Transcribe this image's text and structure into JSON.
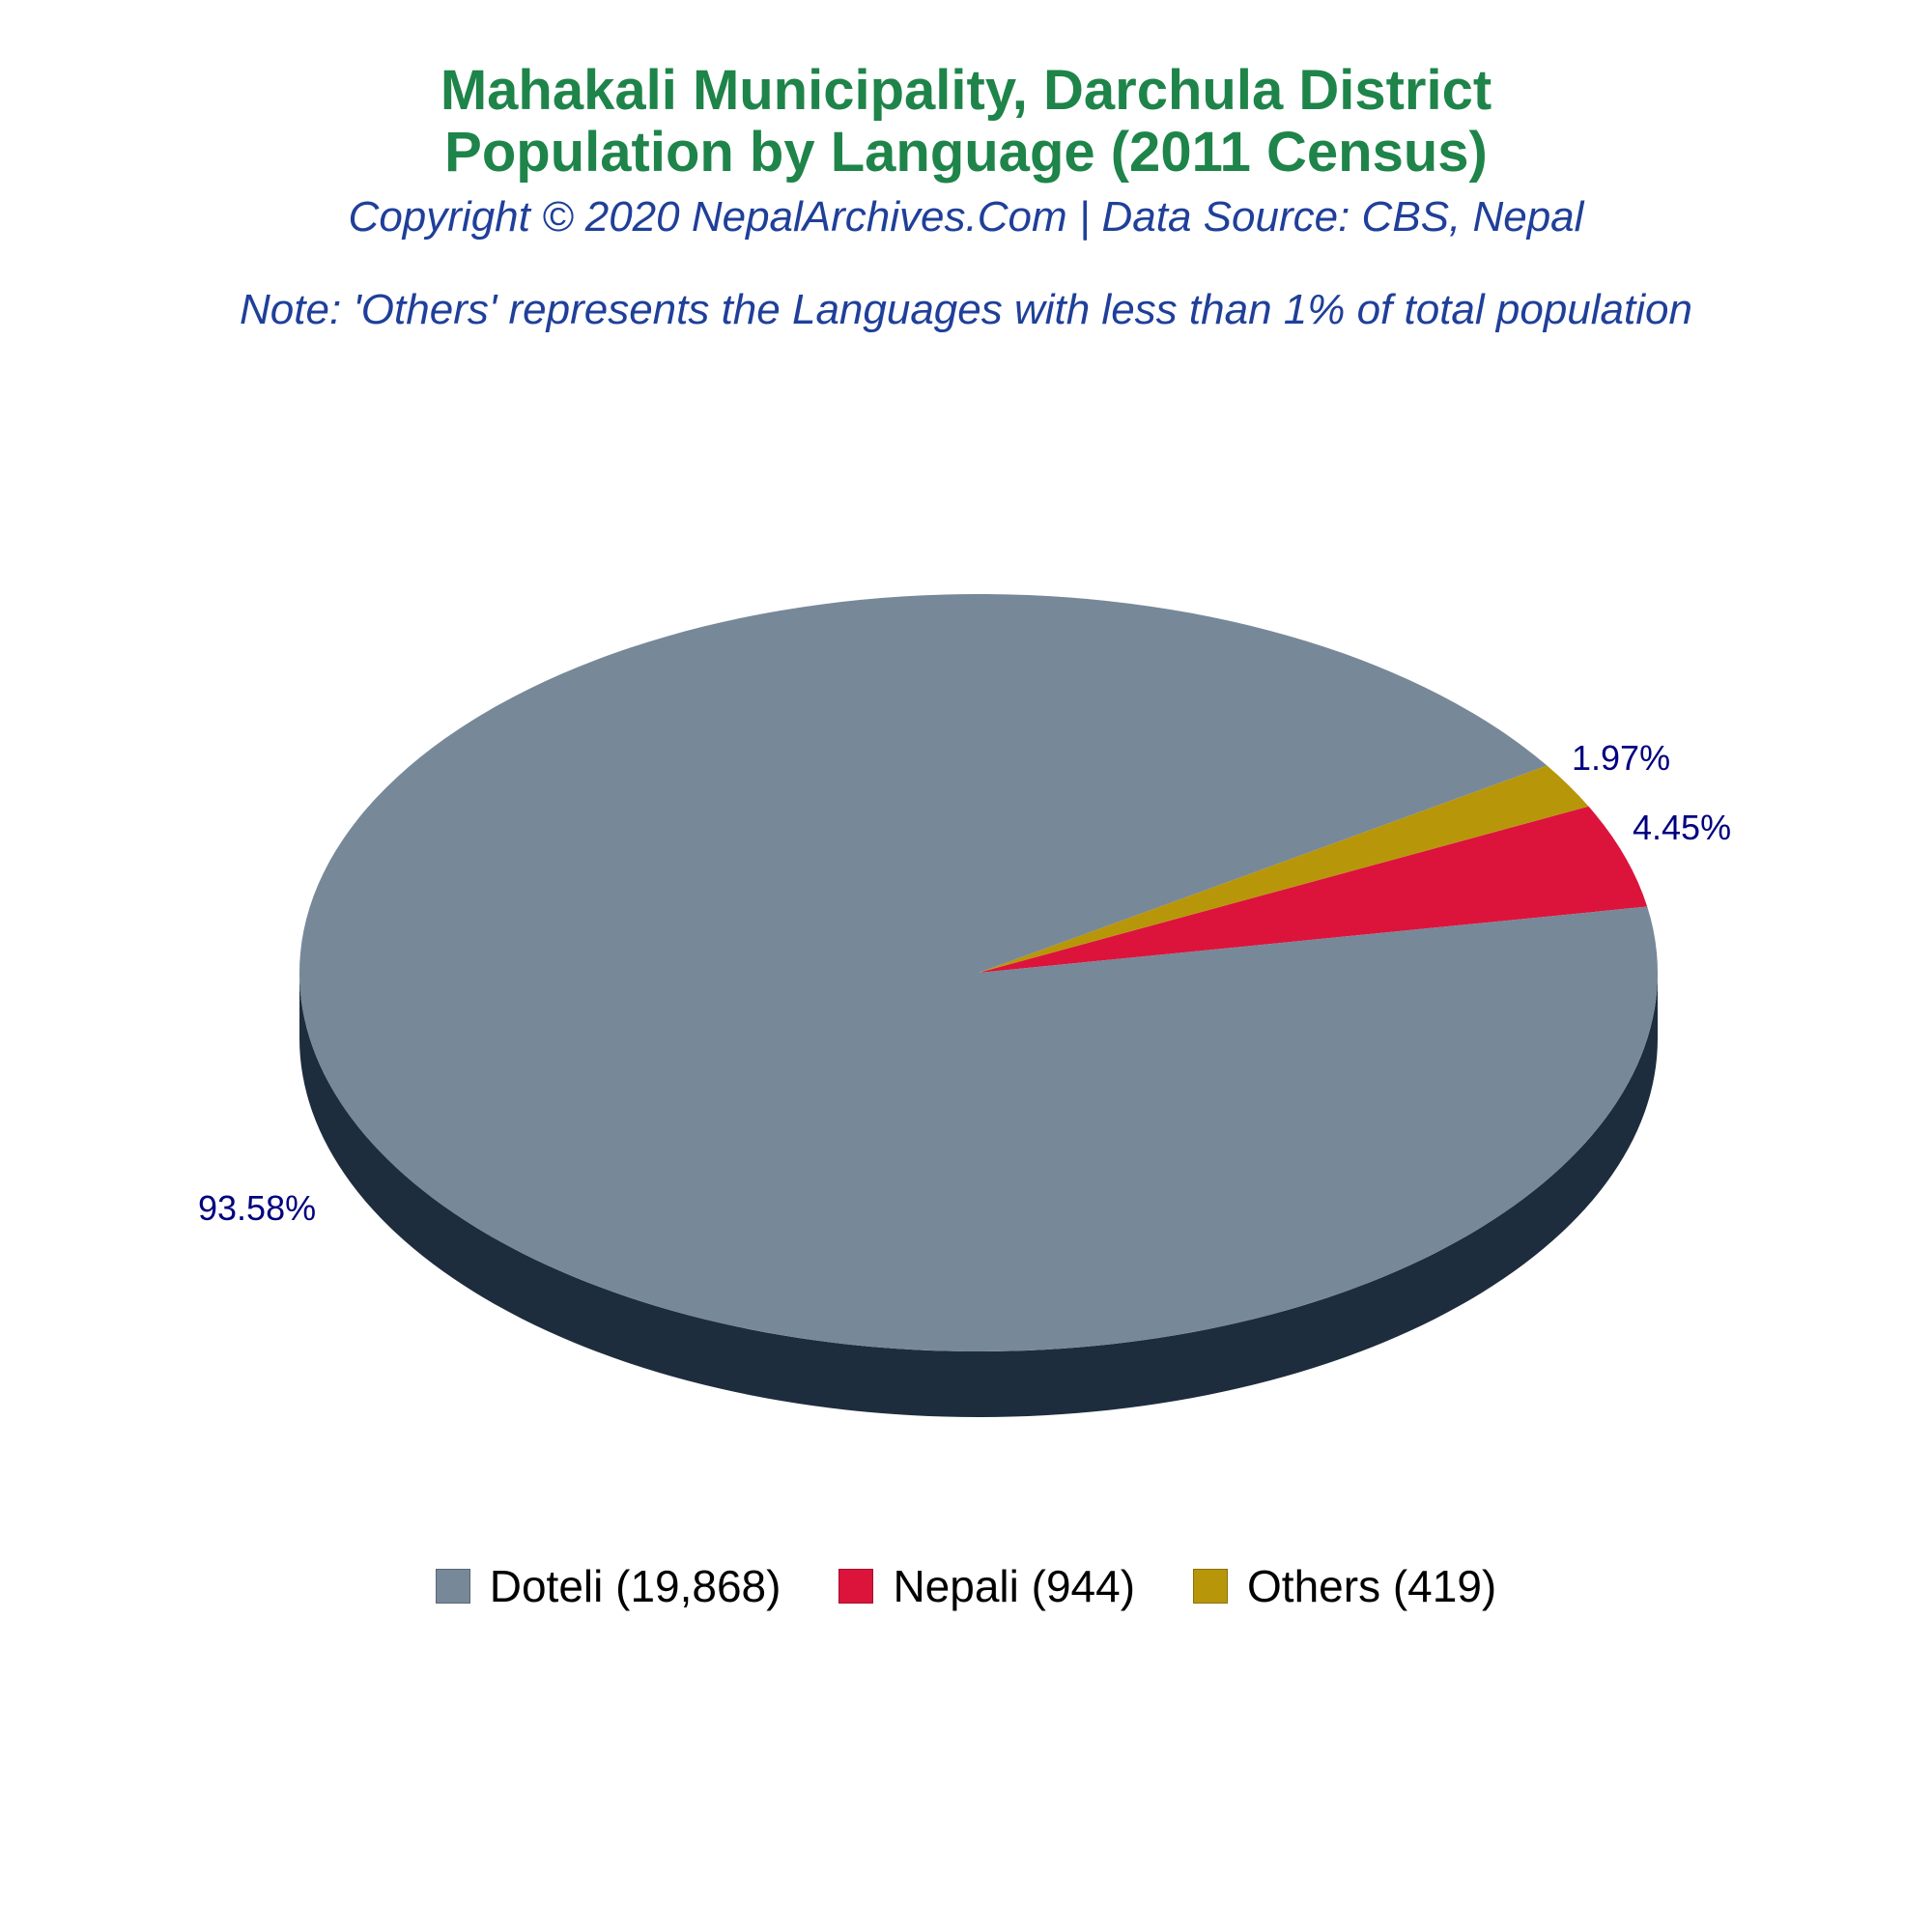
{
  "header": {
    "title_line1": "Mahakali Municipality, Darchula District",
    "title_line2": "Population by Language (2011 Census)",
    "copyright": "Copyright © 2020 NepalArchives.Com | Data Source: CBS, Nepal",
    "note": "Note: 'Others' represents the Languages with less than 1% of total population"
  },
  "chart_data": {
    "type": "pie",
    "style": "3d",
    "slices": [
      {
        "label": "Doteli",
        "value": 19868,
        "percent": 93.58,
        "percent_label": "93.58%",
        "legend": "Doteli (19,868)",
        "color": "#778899",
        "side_color": "#1e2d3d"
      },
      {
        "label": "Nepali",
        "value": 944,
        "percent": 4.45,
        "percent_label": "4.45%",
        "legend": "Nepali (944)",
        "color": "#dc143c",
        "side_color": "#7a0b21"
      },
      {
        "label": "Others",
        "value": 419,
        "percent": 1.97,
        "percent_label": "1.97%",
        "legend": "Others (419)",
        "color": "#b8960a",
        "side_color": "#5c4b05"
      }
    ],
    "legend_position": "bottom"
  }
}
